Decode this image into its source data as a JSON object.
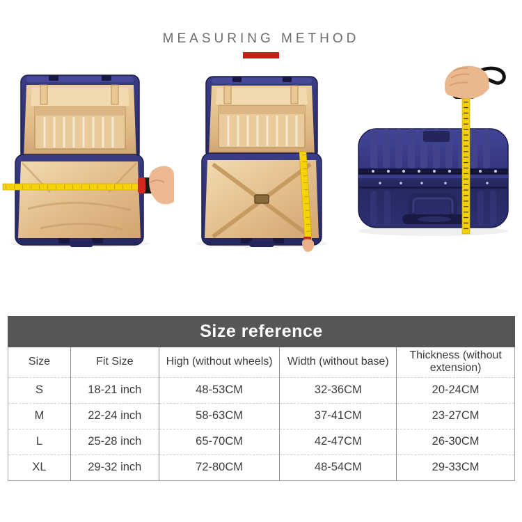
{
  "header": {
    "title": "MEASURING METHOD"
  },
  "illustrations": [
    {
      "name": "open-suitcase-width-measure-photo"
    },
    {
      "name": "open-suitcase-depth-measure-photo"
    },
    {
      "name": "closed-suitcase-height-measure-photo"
    }
  ],
  "size_table": {
    "title": "Size reference",
    "columns": [
      "Size",
      "Fit Size",
      "High (without wheels)",
      "Width (without base)",
      "Thickness (without extension)"
    ],
    "rows": [
      [
        "S",
        "18-21 inch",
        "48-53CM",
        "32-36CM",
        "20-24CM"
      ],
      [
        "M",
        "22-24 inch",
        "58-63CM",
        "37-41CM",
        "23-27CM"
      ],
      [
        "L",
        "25-28 inch",
        "65-70CM",
        "42-47CM",
        "26-30CM"
      ],
      [
        "XL",
        "29-32 inch",
        "72-80CM",
        "48-54CM",
        "29-33CM"
      ]
    ]
  },
  "colors": {
    "accent_red": "#ce1c14",
    "table_header_bg": "#565557",
    "title_gray": "#6c6c6c",
    "suitcase_navy": "#2e3070",
    "tape_yellow": "#f5d307",
    "interior_tan": "#e2bc8a"
  }
}
